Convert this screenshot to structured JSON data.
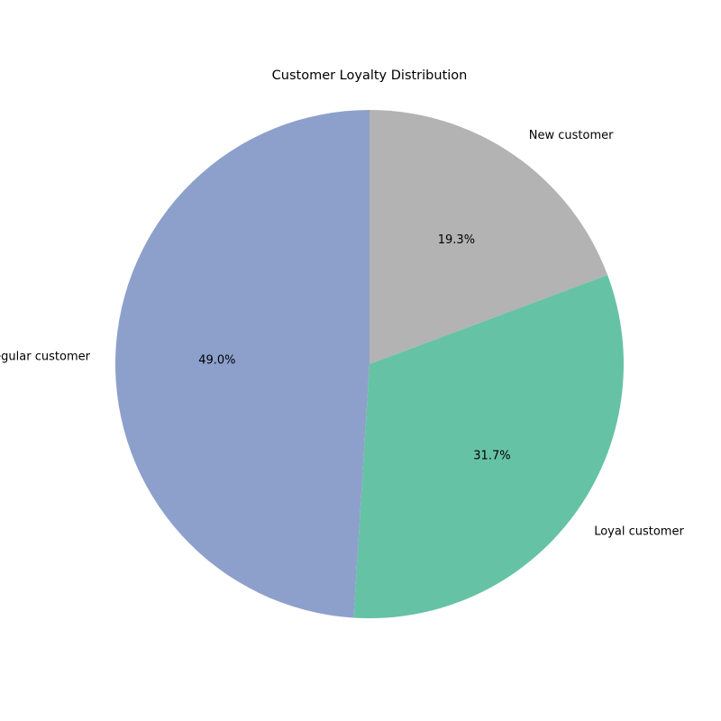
{
  "chart_data": {
    "type": "pie",
    "title": "Customer Loyalty Distribution",
    "slices": [
      {
        "label": "New customer",
        "value": 19.3,
        "pct_text": "19.3%",
        "color": "#b3b3b3"
      },
      {
        "label": "Loyal customer",
        "value": 31.7,
        "pct_text": "31.7%",
        "color": "#66c2a5"
      },
      {
        "label": "Regular customer",
        "value": 49.0,
        "pct_text": "49.0%",
        "color": "#8da0cb"
      }
    ],
    "start_angle_deg": 90,
    "direction": "clockwise",
    "legend": "none"
  }
}
